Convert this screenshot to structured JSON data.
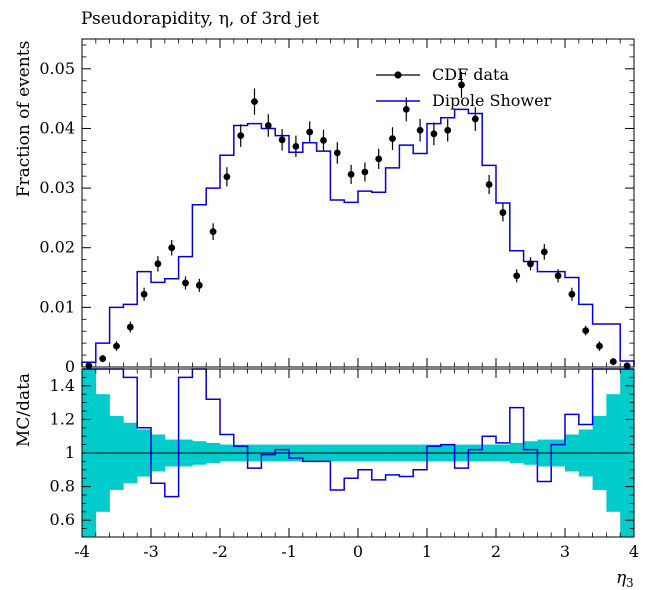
{
  "chart_data": {
    "type": "histogram",
    "title": "Pseudorapidity, η, of 3rd jet",
    "xlabel": "η",
    "xlabel_sub": "3",
    "ylabel_top": "Fraction of events",
    "ylabel_bottom": "MC/data",
    "xlim": [
      -4,
      4
    ],
    "ylim_top": [
      0,
      0.055
    ],
    "ylim_bottom": [
      0.5,
      1.5
    ],
    "x_ticks": [
      -4,
      -3,
      -2,
      -1,
      0,
      1,
      2,
      3,
      4
    ],
    "x_tick_labels": [
      "-4",
      "-3",
      "-2",
      "-1",
      "0",
      "1",
      "2",
      "3",
      "4"
    ],
    "y_ticks_top": [
      0,
      0.01,
      0.02,
      0.03,
      0.04,
      0.05
    ],
    "y_tick_labels_top": [
      "0",
      "0.01",
      "0.02",
      "0.03",
      "0.04",
      "0.05"
    ],
    "y_ticks_bottom": [
      0.6,
      0.8,
      1.0,
      1.2,
      1.4
    ],
    "y_tick_labels_bottom": [
      "0.6",
      "0.8",
      "1",
      "1.2",
      "1.4"
    ],
    "legend": {
      "placement": "top-right",
      "entries": [
        "CDF data",
        "Dipole Shower"
      ]
    },
    "colors": {
      "data": "#000000",
      "mc": "#0000dd",
      "band": "#00cccc"
    },
    "bin_edges": [
      -4.0,
      -3.8,
      -3.6,
      -3.4,
      -3.2,
      -3.0,
      -2.8,
      -2.6,
      -2.4,
      -2.2,
      -2.0,
      -1.8,
      -1.6,
      -1.4,
      -1.2,
      -1.0,
      -0.8,
      -0.6,
      -0.4,
      -0.2,
      0.0,
      0.2,
      0.4,
      0.6,
      0.8,
      1.0,
      1.2,
      1.4,
      1.6,
      1.8,
      2.0,
      2.2,
      2.4,
      2.6,
      2.8,
      3.0,
      3.2,
      3.4,
      3.6,
      3.8,
      4.0
    ],
    "data_values": [
      0.0002,
      0.0014,
      0.0035,
      0.0067,
      0.0122,
      0.0173,
      0.02,
      0.0141,
      0.0137,
      0.0227,
      0.0319,
      0.0388,
      0.0445,
      0.0405,
      0.0381,
      0.037,
      0.0394,
      0.038,
      0.0359,
      0.0323,
      0.0327,
      0.0349,
      0.0383,
      0.0432,
      0.0397,
      0.0391,
      0.0397,
      0.0473,
      0.0416,
      0.0306,
      0.0259,
      0.0153,
      0.0173,
      0.0193,
      0.0153,
      0.0122,
      0.0061,
      0.0035,
      0.0009,
      0.0002
    ],
    "data_errors": [
      0.0004,
      0.0006,
      0.0008,
      0.0009,
      0.0011,
      0.0013,
      0.0013,
      0.0011,
      0.0011,
      0.0014,
      0.0016,
      0.0019,
      0.0022,
      0.0019,
      0.0018,
      0.0018,
      0.0018,
      0.0018,
      0.0018,
      0.0016,
      0.0016,
      0.0017,
      0.0019,
      0.002,
      0.0019,
      0.0019,
      0.0019,
      0.0022,
      0.002,
      0.0016,
      0.0015,
      0.0011,
      0.0011,
      0.0013,
      0.0011,
      0.0011,
      0.0008,
      0.0008,
      0.0006,
      0.0004
    ],
    "mc_values": [
      0.0008,
      0.004,
      0.01,
      0.0105,
      0.016,
      0.0142,
      0.0148,
      0.0185,
      0.0272,
      0.03,
      0.0355,
      0.0405,
      0.0408,
      0.04,
      0.0388,
      0.036,
      0.0376,
      0.0362,
      0.028,
      0.0276,
      0.0295,
      0.0293,
      0.0334,
      0.0372,
      0.0358,
      0.0408,
      0.0418,
      0.0432,
      0.0425,
      0.0338,
      0.0275,
      0.0195,
      0.0177,
      0.016,
      0.016,
      0.015,
      0.0105,
      0.0072,
      0.0072,
      0.001
    ],
    "ratio_values": [
      1.65,
      1.6,
      1.65,
      1.45,
      1.15,
      0.82,
      0.74,
      1.45,
      1.6,
      1.32,
      1.11,
      1.04,
      0.91,
      0.99,
      1.02,
      0.97,
      0.95,
      0.95,
      0.78,
      0.85,
      0.9,
      0.84,
      0.87,
      0.86,
      0.9,
      1.04,
      1.05,
      0.91,
      1.02,
      1.1,
      1.06,
      1.27,
      1.02,
      0.83,
      1.05,
      1.23,
      1.17,
      1.52,
      1.6,
      1.6
    ],
    "band_halfwidth": [
      1.0,
      0.35,
      0.22,
      0.18,
      0.14,
      0.11,
      0.08,
      0.08,
      0.07,
      0.06,
      0.05,
      0.05,
      0.05,
      0.05,
      0.05,
      0.05,
      0.05,
      0.05,
      0.05,
      0.05,
      0.05,
      0.05,
      0.05,
      0.05,
      0.05,
      0.05,
      0.05,
      0.05,
      0.05,
      0.05,
      0.05,
      0.06,
      0.07,
      0.08,
      0.08,
      0.11,
      0.14,
      0.22,
      0.35,
      1.0
    ],
    "ratio_reference": 1.0
  }
}
